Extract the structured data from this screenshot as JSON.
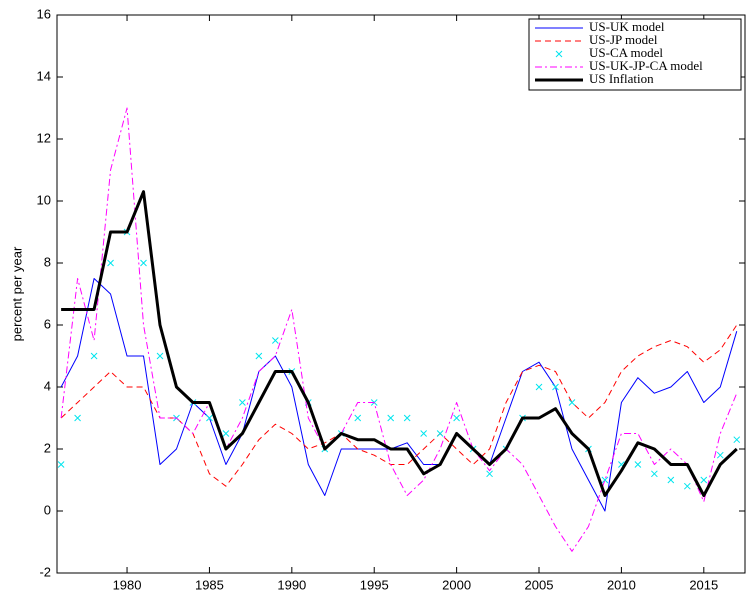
{
  "chart_data": {
    "type": "line",
    "ylabel": "percent per year",
    "x": [
      1976,
      1977,
      1978,
      1979,
      1980,
      1981,
      1982,
      1983,
      1984,
      1985,
      1986,
      1987,
      1988,
      1989,
      1990,
      1991,
      1992,
      1993,
      1994,
      1995,
      1996,
      1997,
      1998,
      1999,
      2000,
      2001,
      2002,
      2003,
      2004,
      2005,
      2006,
      2007,
      2008,
      2009,
      2010,
      2011,
      2012,
      2013,
      2014,
      2015,
      2016,
      2017
    ],
    "series": [
      {
        "name": "US-UK model",
        "color": "#0000ff",
        "style": "solid",
        "values": [
          4,
          5,
          7.5,
          7,
          5,
          5,
          1.5,
          2,
          3.5,
          3,
          1.5,
          2.5,
          4.5,
          5,
          4,
          1.5,
          0.5,
          2,
          2,
          2,
          2,
          2.2,
          1.5,
          1.5,
          2.5,
          2,
          1.5,
          3,
          4.5,
          4.8,
          4,
          2,
          1,
          0,
          3.5,
          4.3,
          3.8,
          4,
          4.5,
          3.5,
          4,
          5.8
        ]
      },
      {
        "name": "US-JP model",
        "color": "#ff0000",
        "style": "dashed",
        "values": [
          3,
          3.5,
          4,
          4.5,
          4,
          4,
          3,
          3,
          2.5,
          1.2,
          0.8,
          1.5,
          2.3,
          2.8,
          2.5,
          2,
          2.2,
          2.5,
          2,
          1.8,
          1.5,
          1.5,
          2,
          2.5,
          2,
          1.5,
          2,
          3.5,
          4.5,
          4.7,
          4.5,
          3.5,
          3,
          3.5,
          4.5,
          5,
          5.3,
          5.5,
          5.3,
          4.8,
          5.2,
          6
        ]
      },
      {
        "name": "US-CA model",
        "color": "#00e5ee",
        "style": "x-markers",
        "values": [
          1.5,
          3,
          5,
          8,
          9,
          8,
          5,
          3,
          3.5,
          3,
          2.5,
          3.5,
          5,
          5.5,
          4.5,
          3.5,
          2,
          2.5,
          3,
          3.5,
          3,
          3,
          2.5,
          2.5,
          3,
          2,
          1.2,
          2,
          3,
          4,
          4,
          3.5,
          2,
          1,
          1.5,
          1.5,
          1.2,
          1,
          0.8,
          1,
          1.8,
          2.3
        ]
      },
      {
        "name": "US-UK-JP-CA model",
        "color": "#ff00ff",
        "style": "dashdot",
        "values": [
          3,
          7.5,
          5.5,
          11,
          13,
          6,
          3,
          3,
          2.5,
          3.5,
          2,
          3,
          4.5,
          5,
          6.5,
          3,
          2,
          2.5,
          3.5,
          3.5,
          1.5,
          0.5,
          1,
          2,
          3.5,
          2,
          1.3,
          2,
          1.5,
          0.5,
          -0.5,
          -1.3,
          -0.5,
          1,
          2.5,
          2.5,
          1.5,
          2,
          1.5,
          0.3,
          2.5,
          3.8
        ]
      },
      {
        "name": "US Inflation",
        "color": "#000000",
        "style": "thick",
        "values": [
          6.5,
          6.5,
          6.5,
          9,
          9,
          10.3,
          6,
          4,
          3.5,
          3.5,
          2,
          2.5,
          3.5,
          4.5,
          4.5,
          3.5,
          2,
          2.5,
          2.3,
          2.3,
          2,
          2,
          1.2,
          1.5,
          2.5,
          2,
          1.5,
          2,
          3,
          3,
          3.3,
          2.5,
          2,
          0.5,
          1.3,
          2.2,
          2,
          1.5,
          1.5,
          0.5,
          1.5,
          2
        ]
      }
    ],
    "xlim": [
      1975.75,
      2017.5
    ],
    "xticks": [
      1980,
      1985,
      1990,
      1995,
      2000,
      2005,
      2010,
      2015
    ],
    "ylim": [
      -2,
      16
    ],
    "yticks": [
      -2,
      0,
      2,
      4,
      6,
      8,
      10,
      12,
      14,
      16
    ],
    "legend": "upper right"
  }
}
